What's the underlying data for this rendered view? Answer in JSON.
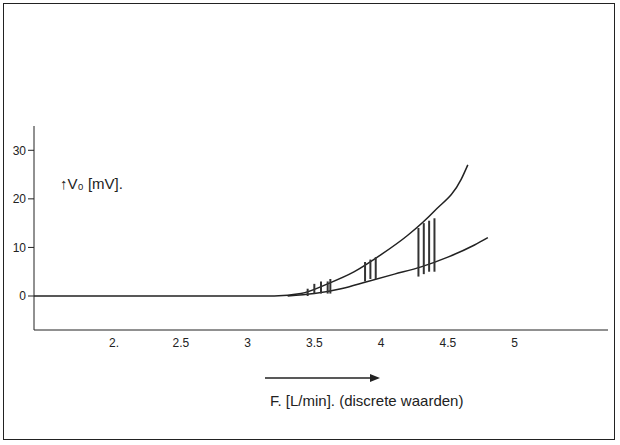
{
  "chart_data": {
    "type": "line",
    "y_label": "↑V₀ [mV].",
    "x_label": "F. [L/min]. (discrete waarden)",
    "xlim": [
      1.4,
      5.7
    ],
    "ylim": [
      -7,
      35
    ],
    "xticks": [
      {
        "value": 2,
        "label": "2."
      },
      2.5,
      3,
      3.5,
      4,
      4.5,
      5
    ],
    "yticks": [
      0,
      10,
      20,
      30
    ],
    "grid": false,
    "series": [
      {
        "color": "#222222",
        "x": [
          1.4,
          2,
          2.5,
          3,
          3.2,
          3.4,
          3.6,
          3.8,
          4,
          4.2,
          4.4,
          4.6,
          4.65
        ],
        "values": [
          0,
          0,
          0,
          0,
          0,
          0.5,
          2.5,
          5,
          8.5,
          12.5,
          17.5,
          24,
          27
        ]
      },
      {
        "color": "#222222",
        "x": [
          3.3,
          3.5,
          3.7,
          3.9,
          4.1,
          4.3,
          4.5,
          4.7,
          4.8
        ],
        "values": [
          0,
          0.5,
          1.5,
          3,
          4.5,
          6,
          8,
          10.5,
          12
        ]
      }
    ],
    "ranges": {
      "color": "#333333",
      "x": [
        3.45,
        3.5,
        3.55,
        3.6,
        3.62,
        3.88,
        3.92,
        3.96,
        4.28,
        4.32,
        4.36,
        4.4
      ],
      "low": [
        0,
        0.5,
        0.5,
        0.5,
        0.5,
        3,
        3.5,
        3.5,
        4,
        4.5,
        5,
        5
      ],
      "high": [
        1.5,
        2.5,
        3,
        3,
        3.5,
        7,
        7.5,
        8,
        14,
        15,
        15.5,
        16
      ]
    }
  }
}
